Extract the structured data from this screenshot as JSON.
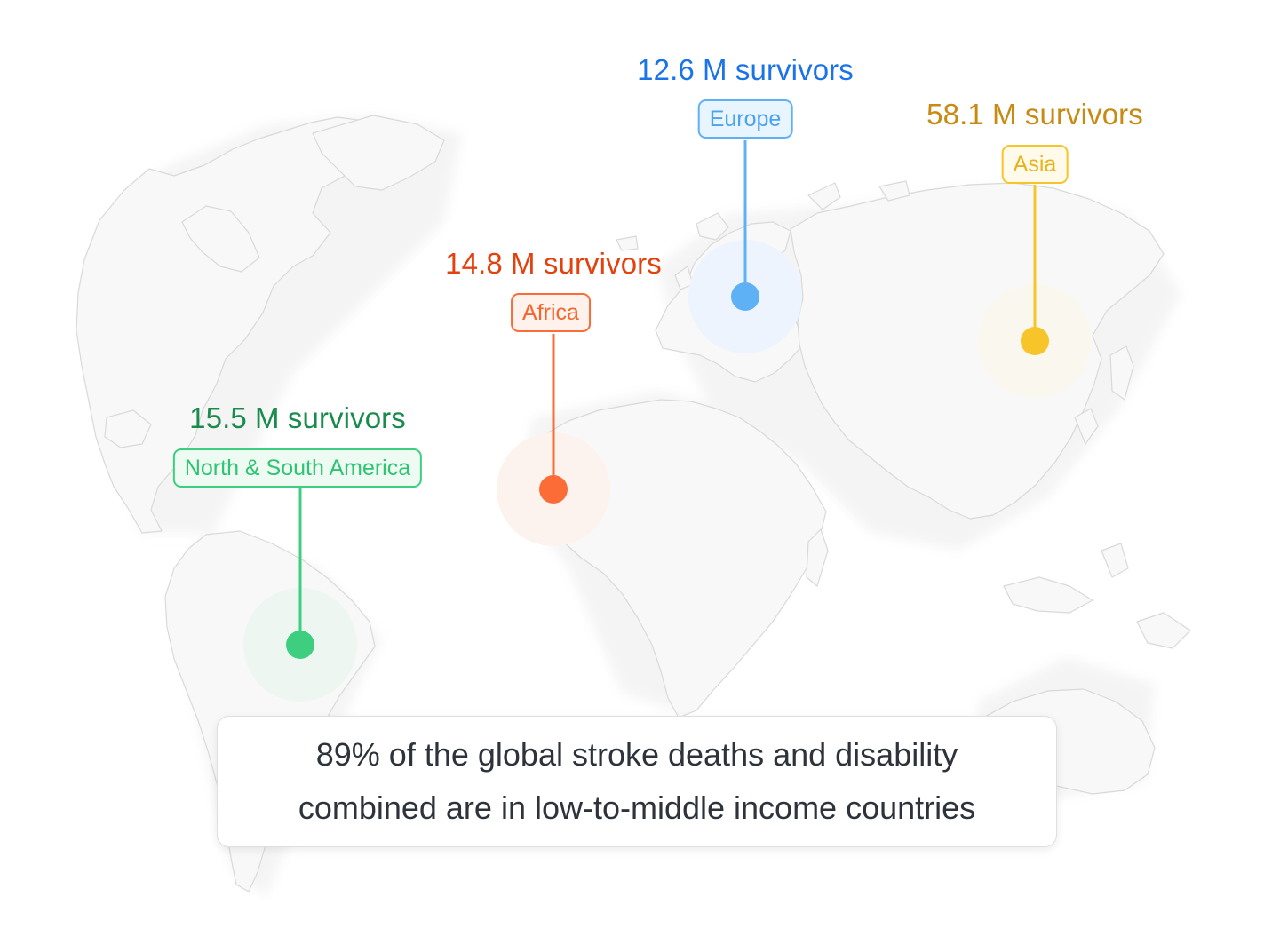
{
  "regions": [
    {
      "id": "europe",
      "label": "Europe",
      "value": "12.6 M survivors",
      "value_color": "#1a73e8",
      "accent": "#5fb1f5",
      "tag_text_color": "#4aa3f0",
      "tag_fill": "#e8f4fe",
      "halo": "#eef4fd"
    },
    {
      "id": "asia",
      "label": "Asia",
      "value": "58.1 M survivors",
      "value_color": "#c88a12",
      "accent": "#f7c52a",
      "tag_text_color": "#e9b21b",
      "tag_fill": "#fffaea",
      "halo": "#faf8ee"
    },
    {
      "id": "africa",
      "label": "Africa",
      "value": "14.8 M survivors",
      "value_color": "#e3420f",
      "accent": "#fb6c36",
      "tag_text_color": "#f7652d",
      "tag_fill": "#fff2ec",
      "halo": "#fcf3ef"
    },
    {
      "id": "americas",
      "label": "North & South America",
      "value": "15.5 M survivors",
      "value_color": "#198c4d",
      "accent": "#3dcf7f",
      "tag_text_color": "#2ec472",
      "tag_fill": "#edfbf3",
      "halo": "#eef6f1"
    }
  ],
  "caption": {
    "line1": "89% of the global stroke deaths and disability",
    "line2": "combined are in low-to-middle income countries"
  }
}
